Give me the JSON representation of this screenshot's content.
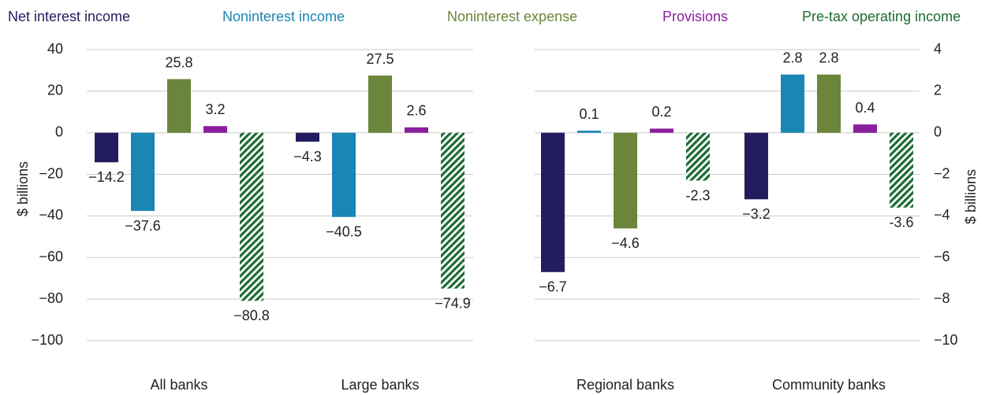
{
  "chart_data": {
    "type": "bar",
    "categories": [
      "All banks",
      "Large banks",
      "Regional banks",
      "Community banks"
    ],
    "category_axes": [
      "y",
      "y",
      "y2",
      "y2"
    ],
    "ylabel": "$ billions",
    "y2label": "$ billions",
    "ylim": [
      -100,
      40
    ],
    "yticks": [
      {
        "value": -100,
        "label": "−100"
      },
      {
        "value": -80,
        "label": "−80"
      },
      {
        "value": -60,
        "label": "−60"
      },
      {
        "value": -40,
        "label": "−40"
      },
      {
        "value": -20,
        "label": "−20"
      },
      0,
      20,
      40
    ],
    "y2lim": [
      -10,
      4
    ],
    "y2ticks": [
      {
        "value": -10,
        "label": "−10"
      },
      {
        "value": -8,
        "label": "−8"
      },
      {
        "value": -6,
        "label": "−6"
      },
      {
        "value": -4,
        "label": "−4"
      },
      {
        "value": -2,
        "label": "−2"
      },
      0,
      2,
      4
    ],
    "grid": true,
    "series": [
      {
        "name": "Net interest income",
        "color": "#231c5e",
        "values": [
          -14.2,
          -4.3,
          -6.7,
          -3.2
        ],
        "value_labels": [
          "−14.2",
          "−4.3",
          "−6.7",
          "−3.2"
        ]
      },
      {
        "name": "Noninterest income",
        "color": "#1a86b4",
        "values": [
          -37.6,
          -40.5,
          0.1,
          2.8
        ],
        "value_labels": [
          "−37.6",
          "−40.5",
          "0.1",
          "2.8"
        ]
      },
      {
        "name": "Noninterest expense",
        "color": "#6b853a",
        "values": [
          25.8,
          27.5,
          -4.6,
          2.8
        ],
        "value_labels": [
          "25.8",
          "27.5",
          "−4.6",
          "2.8"
        ]
      },
      {
        "name": "Provisions",
        "color": "#8a1f9e",
        "values": [
          3.2,
          2.6,
          0.2,
          0.4
        ],
        "value_labels": [
          "3.2",
          "2.6",
          "0.2",
          "0.4"
        ]
      },
      {
        "name": "Pre-tax operating income",
        "color": "#1e6b32",
        "pattern": "hatch",
        "values": [
          -80.8,
          -74.9,
          -2.3,
          -3.6
        ],
        "value_labels": [
          "−80.8",
          "−74.9",
          "-2.3",
          "-3.6"
        ]
      }
    ]
  }
}
